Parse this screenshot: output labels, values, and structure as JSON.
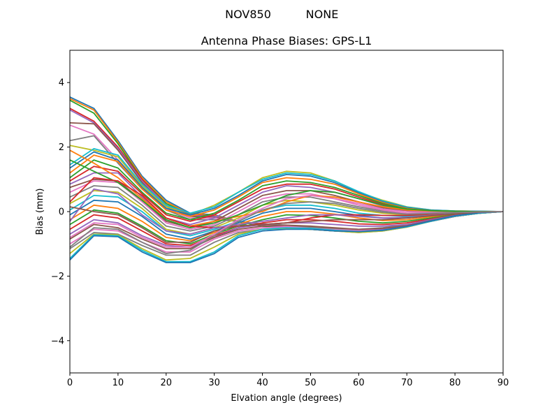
{
  "figure": {
    "suptitle_left": "NOV850",
    "suptitle_right": "NONE"
  },
  "chart_data": {
    "type": "line",
    "title": "Antenna Phase Biases: GPS-L1",
    "xlabel": "Elvation angle (degrees)",
    "ylabel": "Bias (mm)",
    "xlim": [
      0,
      90
    ],
    "ylim": [
      -5,
      5
    ],
    "xticks": [
      0,
      10,
      20,
      30,
      40,
      50,
      60,
      70,
      80,
      90
    ],
    "xtick_labels": [
      "0",
      "10",
      "20",
      "30",
      "40",
      "50",
      "60",
      "70",
      "80",
      "90"
    ],
    "yticks": [
      -4,
      -2,
      0,
      2,
      4
    ],
    "ytick_labels": [
      "−4",
      "−2",
      "0",
      "2",
      "4"
    ],
    "grid": false,
    "legend": "none",
    "x": [
      0,
      5,
      10,
      15,
      20,
      25,
      30,
      35,
      40,
      45,
      50,
      55,
      60,
      65,
      70,
      75,
      80,
      85,
      90
    ],
    "series_colors": [
      "#1f77b4",
      "#ff7f0e",
      "#2ca02c",
      "#d62728",
      "#9467bd",
      "#8c564b",
      "#e377c2",
      "#7f7f7f",
      "#bcbd22",
      "#17becf"
    ],
    "series": [
      {
        "values": [
          3.55,
          3.2,
          2.2,
          1.1,
          0.35,
          -0.05,
          -0.1,
          -0.3,
          -0.45,
          -0.5,
          -0.55,
          -0.6,
          -0.6,
          -0.55,
          -0.45,
          -0.3,
          -0.15,
          -0.05,
          0
        ]
      },
      {
        "values": [
          3.5,
          3.15,
          2.15,
          1.05,
          0.3,
          -0.08,
          -0.12,
          -0.3,
          -0.45,
          -0.5,
          -0.55,
          -0.6,
          -0.6,
          -0.55,
          -0.45,
          -0.3,
          -0.15,
          -0.05,
          0
        ]
      },
      {
        "values": [
          3.45,
          3.05,
          2.1,
          1.0,
          0.25,
          -0.1,
          -0.15,
          -0.32,
          -0.45,
          -0.5,
          -0.55,
          -0.6,
          -0.6,
          -0.55,
          -0.45,
          -0.3,
          -0.15,
          -0.05,
          0
        ]
      },
      {
        "values": [
          3.2,
          2.8,
          2.0,
          1.0,
          0.2,
          -0.1,
          -0.15,
          -0.3,
          -0.42,
          -0.48,
          -0.52,
          -0.58,
          -0.6,
          -0.55,
          -0.45,
          -0.3,
          -0.15,
          -0.05,
          0
        ]
      },
      {
        "values": [
          3.15,
          2.75,
          1.95,
          0.95,
          0.2,
          -0.12,
          -0.15,
          -0.3,
          -0.42,
          -0.48,
          -0.52,
          -0.58,
          -0.6,
          -0.55,
          -0.45,
          -0.3,
          -0.15,
          -0.05,
          0
        ]
      },
      {
        "values": [
          2.75,
          2.72,
          1.9,
          0.9,
          0.15,
          -0.15,
          -0.18,
          -0.3,
          -0.4,
          -0.45,
          -0.5,
          -0.55,
          -0.58,
          -0.52,
          -0.42,
          -0.28,
          -0.14,
          -0.05,
          0
        ]
      },
      {
        "values": [
          2.68,
          2.4,
          1.6,
          0.8,
          0.1,
          -0.2,
          -0.2,
          -0.3,
          -0.4,
          -0.45,
          -0.5,
          -0.55,
          -0.58,
          -0.52,
          -0.42,
          -0.28,
          -0.14,
          -0.05,
          0
        ]
      },
      {
        "values": [
          2.2,
          2.35,
          1.5,
          0.7,
          0.05,
          -0.25,
          -0.25,
          -0.3,
          -0.38,
          -0.42,
          -0.48,
          -0.52,
          -0.55,
          -0.5,
          -0.4,
          -0.27,
          -0.13,
          -0.04,
          0
        ]
      },
      {
        "values": [
          2.05,
          1.9,
          1.7,
          0.8,
          0.15,
          -0.1,
          0.2,
          0.6,
          1.05,
          1.25,
          1.2,
          0.95,
          0.6,
          0.35,
          0.15,
          0.05,
          0.02,
          0.01,
          0
        ]
      },
      {
        "values": [
          1.45,
          1.95,
          1.75,
          0.85,
          0.2,
          -0.05,
          0.15,
          0.6,
          1.0,
          1.2,
          1.15,
          0.95,
          0.62,
          0.33,
          0.14,
          0.05,
          0.02,
          0.01,
          0
        ]
      },
      {
        "values": [
          1.35,
          1.85,
          1.6,
          0.75,
          0.1,
          -0.1,
          0.1,
          0.5,
          0.95,
          1.15,
          1.1,
          0.9,
          0.58,
          0.3,
          0.12,
          0.04,
          0.02,
          0.01,
          0
        ]
      },
      {
        "values": [
          1.2,
          1.75,
          1.55,
          0.7,
          0.05,
          -0.15,
          0.05,
          0.45,
          0.9,
          1.05,
          1.0,
          0.85,
          0.55,
          0.28,
          0.1,
          0.03,
          0.01,
          0.0,
          0
        ]
      },
      {
        "values": [
          1.05,
          1.6,
          1.35,
          0.6,
          -0.05,
          -0.25,
          -0.05,
          0.35,
          0.8,
          0.95,
          0.9,
          0.75,
          0.5,
          0.25,
          0.08,
          0.02,
          0.01,
          0.0,
          0
        ]
      },
      {
        "values": [
          0.95,
          1.4,
          1.25,
          0.55,
          -0.1,
          -0.3,
          -0.1,
          0.3,
          0.7,
          0.85,
          0.85,
          0.7,
          0.45,
          0.22,
          0.06,
          0.02,
          0.01,
          0.0,
          0
        ]
      },
      {
        "values": [
          0.85,
          1.2,
          1.2,
          0.45,
          -0.2,
          -0.4,
          -0.2,
          0.2,
          0.6,
          0.8,
          0.75,
          0.6,
          0.4,
          0.18,
          0.04,
          0.01,
          0.0,
          0.0,
          0
        ]
      },
      {
        "values": [
          0.75,
          1.0,
          0.95,
          0.35,
          -0.3,
          -0.5,
          -0.3,
          0.1,
          0.5,
          0.65,
          0.65,
          0.5,
          0.3,
          0.12,
          0.02,
          0.0,
          0.0,
          0.0,
          0
        ]
      },
      {
        "values": [
          0.6,
          0.95,
          0.9,
          0.3,
          -0.35,
          -0.55,
          -0.4,
          0.0,
          0.4,
          0.55,
          0.55,
          0.4,
          0.25,
          0.08,
          0.0,
          -0.02,
          -0.01,
          0.0,
          0
        ]
      },
      {
        "values": [
          0.45,
          0.8,
          0.75,
          0.2,
          -0.45,
          -0.6,
          -0.45,
          -0.1,
          0.3,
          0.45,
          0.45,
          0.3,
          0.15,
          0.02,
          -0.05,
          -0.04,
          -0.02,
          0.0,
          0
        ]
      },
      {
        "values": [
          0.25,
          0.65,
          0.6,
          0.1,
          -0.55,
          -0.7,
          -0.5,
          -0.2,
          0.2,
          0.35,
          0.3,
          0.2,
          0.05,
          -0.05,
          -0.1,
          -0.06,
          -0.03,
          -0.01,
          0
        ]
      },
      {
        "values": [
          0.05,
          0.5,
          0.45,
          0.0,
          -0.6,
          -0.75,
          -0.55,
          -0.3,
          0.05,
          0.2,
          0.2,
          0.1,
          -0.05,
          -0.12,
          -0.15,
          -0.1,
          -0.05,
          -0.02,
          0
        ]
      },
      {
        "values": [
          -0.1,
          0.35,
          0.3,
          -0.15,
          -0.7,
          -0.85,
          -0.6,
          -0.35,
          -0.05,
          0.1,
          0.1,
          0.0,
          -0.12,
          -0.2,
          -0.2,
          -0.13,
          -0.07,
          -0.02,
          0
        ]
      },
      {
        "values": [
          -0.25,
          0.2,
          0.1,
          -0.3,
          -0.8,
          -0.9,
          -0.65,
          -0.4,
          -0.15,
          0.0,
          0.0,
          -0.08,
          -0.2,
          -0.28,
          -0.25,
          -0.16,
          -0.08,
          -0.03,
          0
        ]
      },
      {
        "values": [
          -0.4,
          0.05,
          -0.05,
          -0.45,
          -0.9,
          -1.0,
          -0.7,
          -0.45,
          -0.25,
          -0.1,
          -0.12,
          -0.2,
          -0.3,
          -0.35,
          -0.3,
          -0.2,
          -0.1,
          -0.03,
          0
        ]
      },
      {
        "values": [
          -0.55,
          -0.1,
          -0.2,
          -0.6,
          -1.0,
          -1.05,
          -0.75,
          -0.5,
          -0.35,
          -0.25,
          -0.25,
          -0.3,
          -0.38,
          -0.4,
          -0.35,
          -0.23,
          -0.11,
          -0.04,
          0
        ]
      },
      {
        "values": [
          -0.7,
          -0.25,
          -0.35,
          -0.75,
          -1.05,
          -1.1,
          -0.8,
          -0.5,
          -0.4,
          -0.35,
          -0.35,
          -0.4,
          -0.45,
          -0.45,
          -0.4,
          -0.25,
          -0.12,
          -0.04,
          0
        ]
      },
      {
        "values": [
          -0.85,
          -0.4,
          -0.5,
          -0.85,
          -1.15,
          -1.15,
          -0.8,
          -0.55,
          -0.45,
          -0.42,
          -0.45,
          -0.5,
          -0.55,
          -0.52,
          -0.44,
          -0.28,
          -0.13,
          -0.04,
          0
        ]
      },
      {
        "values": [
          -1.0,
          -0.55,
          -0.6,
          -0.95,
          -1.25,
          -1.25,
          -0.85,
          -0.6,
          -0.5,
          -0.48,
          -0.52,
          -0.58,
          -0.62,
          -0.58,
          -0.47,
          -0.3,
          -0.14,
          -0.05,
          0
        ]
      },
      {
        "values": [
          -1.15,
          -0.65,
          -0.7,
          -1.05,
          -1.35,
          -1.35,
          -0.95,
          -0.65,
          -0.55,
          -0.52,
          -0.55,
          -0.6,
          -0.65,
          -0.6,
          -0.48,
          -0.3,
          -0.14,
          -0.05,
          0
        ]
      },
      {
        "values": [
          -1.3,
          -0.7,
          -0.72,
          -1.15,
          -1.5,
          -1.45,
          -1.1,
          -0.7,
          -0.55,
          -0.52,
          -0.55,
          -0.6,
          -0.65,
          -0.6,
          -0.48,
          -0.3,
          -0.14,
          -0.05,
          0
        ]
      },
      {
        "values": [
          -1.45,
          -0.72,
          -0.75,
          -1.2,
          -1.55,
          -1.55,
          -1.25,
          -0.75,
          -0.55,
          -0.5,
          -0.52,
          -0.58,
          -0.62,
          -0.58,
          -0.47,
          -0.3,
          -0.14,
          -0.05,
          0
        ]
      },
      {
        "values": [
          -1.5,
          -0.75,
          -0.78,
          -1.25,
          -1.58,
          -1.58,
          -1.3,
          -0.8,
          -0.6,
          -0.55,
          -0.55,
          -0.6,
          -0.62,
          -0.58,
          -0.46,
          -0.29,
          -0.13,
          -0.04,
          0
        ]
      },
      {
        "values": [
          1.9,
          1.5,
          1.05,
          0.4,
          -0.2,
          -0.45,
          -0.3,
          -0.15,
          0.0,
          0.3,
          0.5,
          0.45,
          0.3,
          0.15,
          0.05,
          0.02,
          0.01,
          0.0,
          0
        ]
      },
      {
        "values": [
          1.6,
          1.25,
          0.9,
          0.35,
          -0.25,
          -0.5,
          -0.35,
          -0.1,
          0.2,
          0.5,
          0.65,
          0.6,
          0.4,
          0.2,
          0.08,
          0.03,
          0.01,
          0.0,
          0
        ]
      },
      {
        "values": [
          0.3,
          1.05,
          0.95,
          0.5,
          -0.2,
          -0.45,
          -0.5,
          -0.45,
          -0.4,
          -0.35,
          -0.2,
          -0.1,
          -0.1,
          -0.12,
          -0.12,
          -0.08,
          -0.04,
          -0.01,
          0
        ]
      },
      {
        "values": [
          -0.3,
          0.7,
          0.55,
          -0.1,
          -0.6,
          -0.7,
          -0.5,
          -0.4,
          -0.3,
          -0.2,
          -0.1,
          -0.1,
          -0.15,
          -0.2,
          -0.18,
          -0.12,
          -0.06,
          -0.02,
          0
        ]
      },
      {
        "values": [
          0.15,
          0.0,
          -0.1,
          -0.5,
          -0.95,
          -0.95,
          -0.6,
          -0.45,
          -0.4,
          -0.35,
          -0.3,
          -0.25,
          -0.25,
          -0.25,
          -0.2,
          -0.13,
          -0.07,
          -0.02,
          0
        ]
      },
      {
        "values": [
          -0.8,
          -0.35,
          -0.4,
          -0.8,
          -1.1,
          -1.1,
          -0.7,
          -0.25,
          0.1,
          0.4,
          0.5,
          0.4,
          0.2,
          0.05,
          -0.05,
          -0.05,
          -0.03,
          -0.01,
          0
        ]
      },
      {
        "values": [
          -1.1,
          -0.5,
          -0.55,
          -0.95,
          -1.3,
          -1.2,
          -0.75,
          -0.3,
          0.05,
          0.25,
          0.3,
          0.25,
          0.1,
          -0.02,
          -0.08,
          -0.06,
          -0.03,
          -0.01,
          0
        ]
      }
    ]
  }
}
